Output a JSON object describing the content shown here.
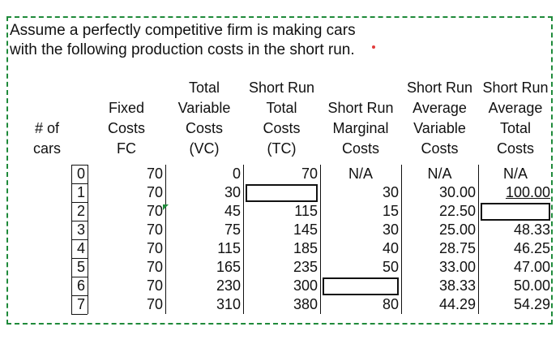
{
  "intro": {
    "line1": "Assume a perfectly competitive firm is making cars",
    "line2": "with the following production costs in the short run."
  },
  "headers": {
    "cars": [
      "# of",
      "cars"
    ],
    "fc": [
      "Fixed",
      "Costs",
      "FC"
    ],
    "vc": [
      "Total",
      "Variable",
      "Costs",
      "(VC)"
    ],
    "tc": [
      "Short Run",
      "Total",
      "Costs",
      "(TC)"
    ],
    "mc": [
      "Short Run",
      "Marginal",
      "Costs"
    ],
    "avc": [
      "Short Run",
      "Average",
      "Variable",
      "Costs"
    ],
    "atc": [
      "Short Run",
      "Average",
      "Total",
      "Costs"
    ]
  },
  "rows": [
    {
      "cars": "0",
      "fc": "70",
      "vc": "0",
      "tc": "70",
      "mc": "N/A",
      "avc": "N/A",
      "atc": "N/A"
    },
    {
      "cars": "1",
      "fc": "70",
      "vc": "30",
      "tc": "",
      "mc": "30",
      "avc": "30.00",
      "atc": "100.00"
    },
    {
      "cars": "2",
      "fc": "70",
      "vc": "45",
      "tc": "115",
      "mc": "15",
      "avc": "22.50",
      "atc": ""
    },
    {
      "cars": "3",
      "fc": "70",
      "vc": "75",
      "tc": "145",
      "mc": "30",
      "avc": "25.00",
      "atc": "48.33"
    },
    {
      "cars": "4",
      "fc": "70",
      "vc": "115",
      "tc": "185",
      "mc": "40",
      "avc": "28.75",
      "atc": "46.25"
    },
    {
      "cars": "5",
      "fc": "70",
      "vc": "165",
      "tc": "235",
      "mc": "50",
      "avc": "33.00",
      "atc": "47.00"
    },
    {
      "cars": "6",
      "fc": "70",
      "vc": "230",
      "tc": "300",
      "mc": "",
      "avc": "38.33",
      "atc": "50.00"
    },
    {
      "cars": "7",
      "fc": "70",
      "vc": "310",
      "tc": "380",
      "mc": "80",
      "avc": "44.29",
      "atc": "54.29"
    }
  ]
}
